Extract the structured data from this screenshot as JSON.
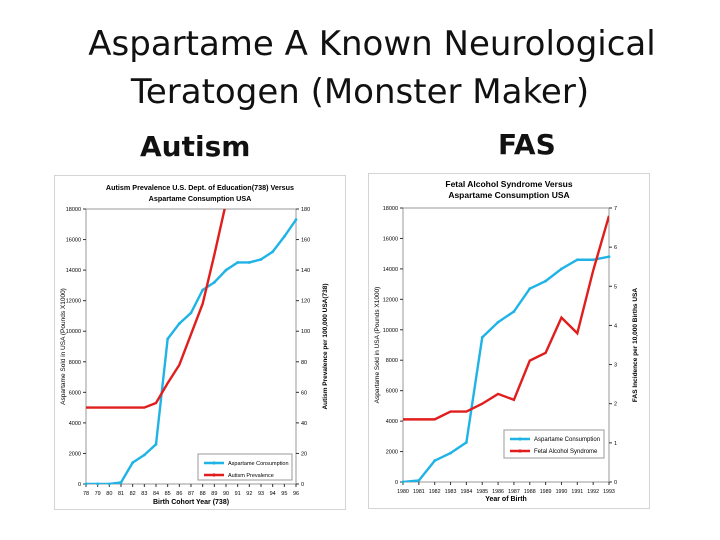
{
  "slide": {
    "title_line1": "Aspartame A Known Neurological",
    "title_line2": "Teratogen (Monster Maker)",
    "left_heading": "Autism",
    "right_heading": "FAS"
  },
  "colors": {
    "aspartame": "#1fb3e6",
    "condition": "#e01e1e"
  },
  "chart_data": [
    {
      "type": "line",
      "title": "Autism Prevalence U.S. Dept. of Education(738) Versus Aspartame Consumption USA",
      "title_lines": [
        "Autism Prevalence U.S. Dept. of Education(738) Versus",
        "Aspartame Consumption USA"
      ],
      "xlabel": "Birth Cohort Year (738)",
      "ylabel": "Aspartame Sold in USA  (Pounds X1000)",
      "y2label": "Autism Prevalence per 100,000 USA(738)",
      "categories": [
        "78",
        "79",
        "80",
        "81",
        "82",
        "83",
        "84",
        "85",
        "86",
        "87",
        "88",
        "89",
        "90",
        "91",
        "92",
        "93",
        "94",
        "95",
        "96"
      ],
      "ylim": [
        0,
        18000
      ],
      "y2lim": [
        0,
        180
      ],
      "y_ticks": [
        0,
        2000,
        4000,
        6000,
        8000,
        10000,
        12000,
        14000,
        16000,
        18000
      ],
      "y2_ticks": [
        0,
        20,
        40,
        60,
        80,
        100,
        120,
        140,
        160,
        180
      ],
      "legend_position": "bottom-right",
      "series": [
        {
          "name": "Aspartame Consumption",
          "axis": "left",
          "values": [
            0,
            0,
            0,
            100,
            1400,
            1900,
            2600,
            9500,
            10500,
            11200,
            12700,
            13200,
            14000,
            14500,
            14500,
            14700,
            15200,
            16200,
            17300
          ]
        },
        {
          "name": "Autism Prevalence",
          "axis": "right",
          "values": [
            50,
            50,
            50,
            50,
            50,
            50,
            53,
            66,
            78,
            98,
            118,
            150,
            184,
            null,
            null,
            null,
            null,
            null,
            null
          ]
        }
      ]
    },
    {
      "type": "line",
      "title": "Fetal Alcohol Syndrome Versus Aspartame Consumption USA",
      "title_lines": [
        "Fetal Alcohol Syndrome Versus",
        "Aspartame Consumption USA"
      ],
      "xlabel": "Year of Birth",
      "ylabel": "Aspartame Sold in USA  (Pounds X1000)",
      "y2label": "FAS  Incidence per 10,000 Births USA",
      "categories": [
        "1980",
        "1981",
        "1982",
        "1983",
        "1984",
        "1985",
        "1986",
        "1987",
        "1988",
        "1989",
        "1990",
        "1991",
        "1992",
        "1993"
      ],
      "ylim": [
        0,
        18000
      ],
      "y2lim": [
        0,
        7
      ],
      "y_ticks": [
        0,
        2000,
        4000,
        6000,
        8000,
        10000,
        12000,
        14000,
        16000,
        18000
      ],
      "y2_ticks": [
        0,
        1,
        2,
        3,
        4,
        5,
        6,
        7
      ],
      "legend_position": "bottom-right",
      "series": [
        {
          "name": "Aspartame Consumption",
          "axis": "left",
          "values": [
            0,
            100,
            1400,
            1900,
            2600,
            9500,
            10500,
            11200,
            12700,
            13200,
            14000,
            14600,
            14600,
            14800
          ]
        },
        {
          "name": "Fetal Alcohol Syndrome",
          "axis": "right",
          "values": [
            1.6,
            1.6,
            1.6,
            1.8,
            1.8,
            2.0,
            2.25,
            2.1,
            3.1,
            3.3,
            4.2,
            3.8,
            5.4,
            6.8
          ]
        }
      ]
    }
  ]
}
